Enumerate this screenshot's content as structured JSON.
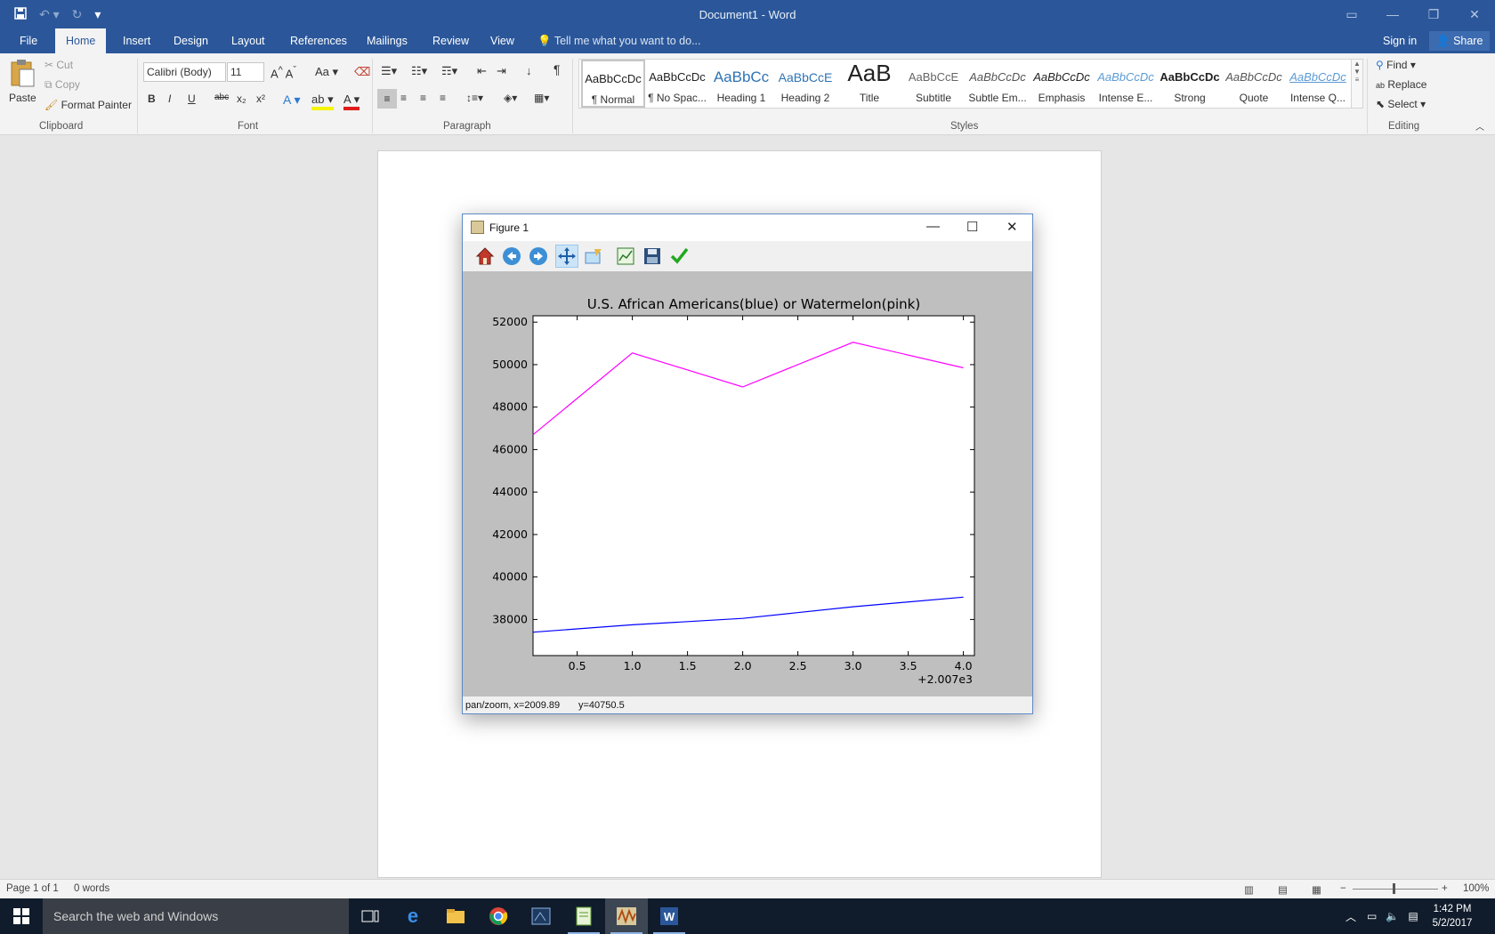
{
  "window": {
    "title": "Document1 - Word"
  },
  "tabs": [
    "File",
    "Home",
    "Insert",
    "Design",
    "Layout",
    "References",
    "Mailings",
    "Review",
    "View"
  ],
  "tell_me": "Tell me what you want to do...",
  "sign_in": "Sign in",
  "share": "Share",
  "clipboard": {
    "paste": "Paste",
    "cut": "Cut",
    "copy": "Copy",
    "format_painter": "Format Painter",
    "label": "Clipboard"
  },
  "font": {
    "name": "Calibri (Body)",
    "size": "11",
    "label": "Font",
    "bold": "B",
    "italic": "I",
    "underline": "U",
    "strike": "abc",
    "sub": "x₂",
    "sup": "x²"
  },
  "paragraph": {
    "label": "Paragraph"
  },
  "styles": {
    "label": "Styles",
    "items": [
      {
        "sample": "AaBbCcDc",
        "name": "¶ Normal"
      },
      {
        "sample": "AaBbCcDc",
        "name": "¶ No Spac..."
      },
      {
        "sample": "AaBbCc",
        "name": "Heading 1"
      },
      {
        "sample": "AaBbCcE",
        "name": "Heading 2"
      },
      {
        "sample": "AaB",
        "name": "Title"
      },
      {
        "sample": "AaBbCcE",
        "name": "Subtitle"
      },
      {
        "sample": "AaBbCcDc",
        "name": "Subtle Em..."
      },
      {
        "sample": "AaBbCcDc",
        "name": "Emphasis"
      },
      {
        "sample": "AaBbCcDc",
        "name": "Intense E..."
      },
      {
        "sample": "AaBbCcDc",
        "name": "Strong"
      },
      {
        "sample": "AaBbCcDc",
        "name": "Quote"
      },
      {
        "sample": "AaBbCcDc",
        "name": "Intense Q..."
      }
    ]
  },
  "editing": {
    "label": "Editing",
    "find": "Find",
    "replace": "Replace",
    "select": "Select"
  },
  "figure": {
    "title": "Figure 1",
    "status_mode": "pan/zoom, x=2009.89",
    "status_y": "y=40750.5"
  },
  "statusbar": {
    "page": "Page 1 of 1",
    "words": "0 words",
    "zoom": "100%"
  },
  "taskbar": {
    "search": "Search the web and Windows",
    "time": "1:42 PM",
    "date": "5/2/2017"
  },
  "chart_data": {
    "type": "line",
    "title": "U.S. African Americans(blue) or Watermelon(pink)",
    "xlabel": "",
    "ylabel": "",
    "x_offset_label": "+2.007e3",
    "x": [
      0.1,
      1.0,
      2.0,
      3.0,
      4.0
    ],
    "x_ticks": [
      "0.5",
      "1.0",
      "1.5",
      "2.0",
      "2.5",
      "3.0",
      "3.5",
      "4.0"
    ],
    "y_ticks": [
      "38000",
      "40000",
      "42000",
      "44000",
      "46000",
      "48000",
      "50000",
      "52000"
    ],
    "xlim": [
      0.1,
      4.1
    ],
    "ylim": [
      36300,
      52300
    ],
    "series": [
      {
        "color": "#ff00ff",
        "values": [
          46700,
          50550,
          48950,
          51050,
          49850
        ]
      },
      {
        "color": "#0000ff",
        "values": [
          37400,
          37750,
          38050,
          38600,
          39050
        ]
      }
    ],
    "grid": false,
    "legend": "none"
  }
}
